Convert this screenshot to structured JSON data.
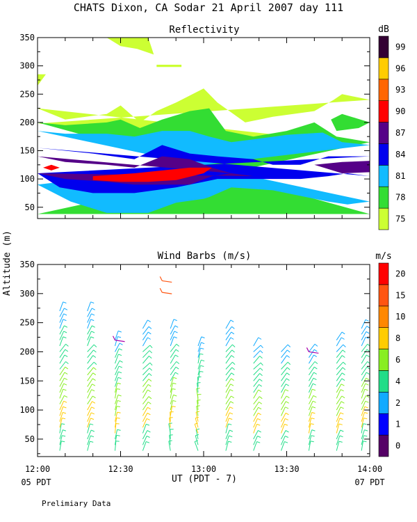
{
  "title": "CHATS Dixon, CA  Sodar  21 April 2007  day 111",
  "footer": {
    "ut_label": "UT  (PDT - 7)",
    "start_local": "05 PDT",
    "end_local": "07 PDT",
    "note": "Prelimiary Data"
  },
  "chart_data": [
    {
      "type": "heatmap",
      "title": "Reflectivity",
      "ylabel": "Altitude (m)",
      "xlabel": "UT  (PDT - 7)",
      "xlim": [
        0,
        120
      ],
      "ylim": [
        30,
        350
      ],
      "x_ticks": [
        0,
        30,
        60,
        90,
        120
      ],
      "x_tick_labels": [
        "12:00",
        "12:30",
        "13:00",
        "13:30",
        "14:00"
      ],
      "y_ticks": [
        50,
        100,
        150,
        200,
        250,
        300,
        350
      ],
      "colorbar": {
        "unit": "dB",
        "levels": [
          75,
          78,
          81,
          84,
          87,
          90,
          93,
          96,
          99
        ],
        "colors": [
          "#ccff33",
          "#33dd33",
          "#11bbff",
          "#0000ee",
          "#550088",
          "#ff0000",
          "#ff6600",
          "#ffcc00",
          "#330033"
        ]
      },
      "bands": [
        {
          "level": 75,
          "color": "#ccff33",
          "top": [
            [
              0,
              225
            ],
            [
              10,
              205
            ],
            [
              25,
              215
            ],
            [
              30,
              230
            ],
            [
              37,
              200
            ],
            [
              43,
              220
            ],
            [
              50,
              235
            ],
            [
              60,
              260
            ],
            [
              65,
              235
            ],
            [
              75,
              200
            ],
            [
              85,
              210
            ],
            [
              100,
              220
            ],
            [
              107,
              240
            ],
            [
              110,
              250
            ],
            [
              120,
              240
            ]
          ],
          "bottom": [
            [
              0,
              198
            ],
            [
              120,
              160
            ]
          ]
        },
        {
          "level": 75,
          "color": "#ccff33",
          "top": [
            [
              0,
              285
            ],
            [
              3,
              285
            ],
            [
              0,
              265
            ]
          ],
          "bottom": [
            [
              0,
              265
            ]
          ]
        },
        {
          "level": 75,
          "color": "#ccff33",
          "top": [
            [
              25,
              350
            ],
            [
              40,
              350
            ],
            [
              42,
              320
            ],
            [
              36,
              330
            ],
            [
              30,
              335
            ]
          ],
          "bottom": [
            [
              25,
              350
            ]
          ]
        },
        {
          "level": 75,
          "color": "#ccff33",
          "top": [
            [
              43,
              302
            ],
            [
              52,
              302
            ]
          ],
          "bottom": [
            [
              52,
              298
            ],
            [
              43,
              298
            ]
          ]
        },
        {
          "level": 78,
          "color": "#33dd33",
          "top": [
            [
              0,
              200
            ],
            [
              10,
              195
            ],
            [
              25,
              200
            ],
            [
              30,
              205
            ],
            [
              37,
              190
            ],
            [
              45,
              205
            ],
            [
              55,
              220
            ],
            [
              62,
              225
            ],
            [
              68,
              185
            ],
            [
              78,
              175
            ],
            [
              90,
              185
            ],
            [
              100,
              200
            ],
            [
              108,
              175
            ],
            [
              120,
              165
            ]
          ],
          "bottom": [
            [
              0,
              38
            ],
            [
              120,
              38
            ]
          ]
        },
        {
          "level": 78,
          "color": "#33dd33",
          "top": [
            [
              106,
              205
            ],
            [
              110,
              215
            ],
            [
              120,
              200
            ],
            [
              116,
              190
            ],
            [
              108,
              185
            ]
          ],
          "bottom": [
            [
              106,
              205
            ]
          ]
        },
        {
          "level": 81,
          "color": "#11bbff",
          "top": [
            [
              0,
              185
            ],
            [
              10,
              180
            ],
            [
              25,
              180
            ],
            [
              35,
              175
            ],
            [
              45,
              185
            ],
            [
              55,
              185
            ],
            [
              62,
              175
            ],
            [
              70,
              165
            ],
            [
              78,
              170
            ],
            [
              90,
              178
            ],
            [
              103,
              182
            ],
            [
              110,
              165
            ],
            [
              120,
              160
            ]
          ],
          "bottom": [
            [
              0,
              90
            ],
            [
              12,
              60
            ],
            [
              25,
              40
            ],
            [
              40,
              40
            ],
            [
              50,
              58
            ],
            [
              60,
              65
            ],
            [
              62,
              68
            ],
            [
              70,
              85
            ],
            [
              85,
              80
            ],
            [
              95,
              70
            ],
            [
              105,
              60
            ],
            [
              112,
              55
            ],
            [
              120,
              60
            ]
          ]
        },
        {
          "level": 84,
          "color": "#0000ee",
          "top": [
            [
              0,
              155
            ],
            [
              10,
              150
            ],
            [
              20,
              145
            ],
            [
              35,
              135
            ],
            [
              45,
              160
            ],
            [
              55,
              145
            ],
            [
              65,
              140
            ],
            [
              78,
              135
            ],
            [
              85,
              125
            ],
            [
              95,
              125
            ],
            [
              105,
              140
            ],
            [
              120,
              140
            ]
          ],
          "bottom": [
            [
              0,
              110
            ],
            [
              8,
              85
            ],
            [
              20,
              75
            ],
            [
              35,
              75
            ],
            [
              50,
              85
            ],
            [
              60,
              95
            ],
            [
              65,
              100
            ],
            [
              78,
              100
            ],
            [
              95,
              100
            ],
            [
              105,
              105
            ],
            [
              112,
              110
            ],
            [
              120,
              105
            ]
          ]
        },
        {
          "level": 87,
          "color": "#550088",
          "top": [
            [
              0,
              140
            ],
            [
              10,
              130
            ],
            [
              25,
              125
            ],
            [
              35,
              120
            ],
            [
              45,
              140
            ],
            [
              55,
              135
            ],
            [
              63,
              120
            ],
            [
              70,
              110
            ],
            [
              78,
              105
            ]
          ],
          "bottom": [
            [
              0,
              110
            ],
            [
              10,
              100
            ],
            [
              25,
              95
            ],
            [
              35,
              90
            ],
            [
              45,
              90
            ],
            [
              55,
              90
            ],
            [
              63,
              105
            ],
            [
              70,
              110
            ]
          ]
        },
        {
          "level": 87,
          "color": "#550088",
          "top": [
            [
              100,
              125
            ],
            [
              110,
              130
            ],
            [
              120,
              132
            ]
          ],
          "bottom": [
            [
              120,
              112
            ],
            [
              110,
              110
            ],
            [
              100,
              125
            ]
          ]
        },
        {
          "level": 90,
          "color": "#ff0000",
          "top": [
            [
              5,
              125
            ],
            [
              8,
              120
            ],
            [
              5,
              115
            ]
          ],
          "bottom": [
            [
              2,
              120
            ]
          ]
        },
        {
          "level": 90,
          "color": "#ff0000",
          "top": [
            [
              20,
              105
            ],
            [
              35,
              110
            ],
            [
              45,
              115
            ],
            [
              55,
              120
            ],
            [
              63,
              120
            ]
          ],
          "bottom": [
            [
              60,
              110
            ],
            [
              50,
              98
            ],
            [
              40,
              95
            ],
            [
              30,
              95
            ],
            [
              20,
              98
            ]
          ]
        }
      ]
    },
    {
      "type": "scatter",
      "title": "Wind Barbs (m/s)",
      "ylabel": "Altitude (m)",
      "xlabel": "UT  (PDT - 7)",
      "xlim": [
        0,
        120
      ],
      "ylim": [
        20,
        350
      ],
      "x_ticks": [
        0,
        30,
        60,
        90,
        120
      ],
      "x_tick_labels": [
        "12:00",
        "12:30",
        "13:00",
        "13:30",
        "14:00"
      ],
      "y_ticks": [
        50,
        100,
        150,
        200,
        250,
        300,
        350
      ],
      "colorbar": {
        "unit": "m/s",
        "levels": [
          0,
          1,
          2,
          4,
          6,
          8,
          10,
          15,
          20
        ],
        "colors": [
          "#550066",
          "#0000ff",
          "#11aaff",
          "#22dd88",
          "#88ee22",
          "#ffcc00",
          "#ff8800",
          "#ff5511",
          "#ff0000"
        ]
      },
      "columns": [
        {
          "time": 8,
          "top": 270,
          "dirs": [
            10,
            20,
            30,
            20
          ]
        },
        {
          "time": 18,
          "top": 270,
          "dirs": [
            15,
            25,
            35,
            20
          ]
        },
        {
          "time": 28,
          "top": 220,
          "dirs": [
            5,
            10,
            20,
            15
          ]
        },
        {
          "time": 38,
          "top": 240,
          "dirs": [
            20,
            30,
            40,
            30
          ]
        },
        {
          "time": 48,
          "top": 240,
          "dirs": [
            -10,
            10,
            30,
            20
          ]
        },
        {
          "time": 58,
          "top": 210,
          "dirs": [
            -20,
            -10,
            10,
            20
          ]
        },
        {
          "time": 68,
          "top": 240,
          "dirs": [
            15,
            25,
            35,
            30
          ]
        },
        {
          "time": 78,
          "top": 210,
          "dirs": [
            20,
            30,
            40,
            30
          ]
        },
        {
          "time": 88,
          "top": 200,
          "dirs": [
            20,
            25,
            35,
            25
          ]
        },
        {
          "time": 98,
          "top": 200,
          "dirs": [
            10,
            20,
            30,
            20
          ]
        },
        {
          "time": 108,
          "top": 220,
          "dirs": [
            15,
            25,
            35,
            30
          ]
        },
        {
          "time": 117,
          "top": 240,
          "dirs": [
            10,
            20,
            30,
            25
          ]
        }
      ],
      "special_points": [
        {
          "time": 28,
          "alt": 220,
          "color": "#aa00aa"
        },
        {
          "time": 98,
          "alt": 200,
          "color": "#aa00aa"
        },
        {
          "time": 45,
          "alt": 322,
          "color": "#ff5511"
        },
        {
          "time": 45,
          "alt": 302,
          "color": "#ff5511"
        }
      ]
    }
  ]
}
